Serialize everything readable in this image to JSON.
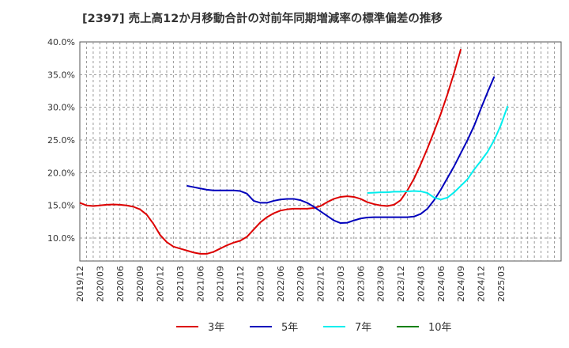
{
  "chart_data": {
    "type": "line",
    "title": "[2397]  売上高12か月移動合計の対前年同期増減率の標準偏差の推移",
    "xlabel": "",
    "ylabel": "",
    "ylim": [
      6.5,
      40.0
    ],
    "xlim": [
      0,
      72
    ],
    "yticks": [
      10.0,
      15.0,
      20.0,
      25.0,
      30.0,
      35.0,
      40.0
    ],
    "ytick_labels": [
      "10.0%",
      "15.0%",
      "20.0%",
      "25.0%",
      "30.0%",
      "35.0%",
      "40.0%"
    ],
    "xtick_labels": [
      "2019/12",
      "2020/03",
      "2020/06",
      "2020/09",
      "2020/12",
      "2021/03",
      "2021/06",
      "2021/09",
      "2021/12",
      "2022/03",
      "2022/06",
      "2022/09",
      "2022/12",
      "2023/03",
      "2023/06",
      "2023/09",
      "2023/12",
      "2024/03",
      "2024/06",
      "2024/09",
      "2024/12",
      "2025/03"
    ],
    "grid": true,
    "legend_position": "bottom",
    "series": [
      {
        "name": "3年",
        "color": "#dd0000",
        "start": 0,
        "values": [
          15.4,
          15.0,
          14.9,
          15.0,
          15.1,
          15.15,
          15.1,
          15.0,
          14.8,
          14.4,
          13.6,
          12.2,
          10.5,
          9.4,
          8.7,
          8.4,
          8.1,
          7.8,
          7.6,
          7.6,
          7.9,
          8.4,
          8.9,
          9.3,
          9.6,
          10.2,
          11.3,
          12.4,
          13.2,
          13.8,
          14.2,
          14.4,
          14.5,
          14.5,
          14.5,
          14.6,
          14.9,
          15.5,
          16.0,
          16.3,
          16.4,
          16.3,
          16.0,
          15.5,
          15.2,
          15.0,
          14.9,
          15.1,
          15.8,
          17.3,
          19.1,
          21.3,
          23.7,
          26.3,
          29.0,
          32.0,
          35.3,
          38.9
        ]
      },
      {
        "name": "5年",
        "color": "#0000bb",
        "start": 16,
        "values": [
          18.0,
          17.8,
          17.6,
          17.4,
          17.3,
          17.3,
          17.3,
          17.3,
          17.2,
          16.8,
          15.7,
          15.4,
          15.4,
          15.7,
          15.9,
          16.0,
          16.0,
          15.8,
          15.4,
          14.8,
          14.1,
          13.4,
          12.7,
          12.3,
          12.35,
          12.7,
          13.0,
          13.15,
          13.2,
          13.2,
          13.2,
          13.2,
          13.2,
          13.2,
          13.3,
          13.7,
          14.5,
          15.8,
          17.4,
          19.2,
          21.0,
          23.0,
          25.0,
          27.2,
          29.8,
          32.3,
          34.7
        ]
      },
      {
        "name": "7年",
        "color": "#00eeee",
        "start": 43,
        "values": [
          16.9,
          16.95,
          17.0,
          17.0,
          17.1,
          17.1,
          17.15,
          17.2,
          17.15,
          16.9,
          16.2,
          15.9,
          16.2,
          17.0,
          18.0,
          19.0,
          20.5,
          21.8,
          23.2,
          25.0,
          27.3,
          30.2
        ]
      },
      {
        "name": "10年",
        "color": "#008000",
        "start": 0,
        "values": []
      }
    ]
  }
}
